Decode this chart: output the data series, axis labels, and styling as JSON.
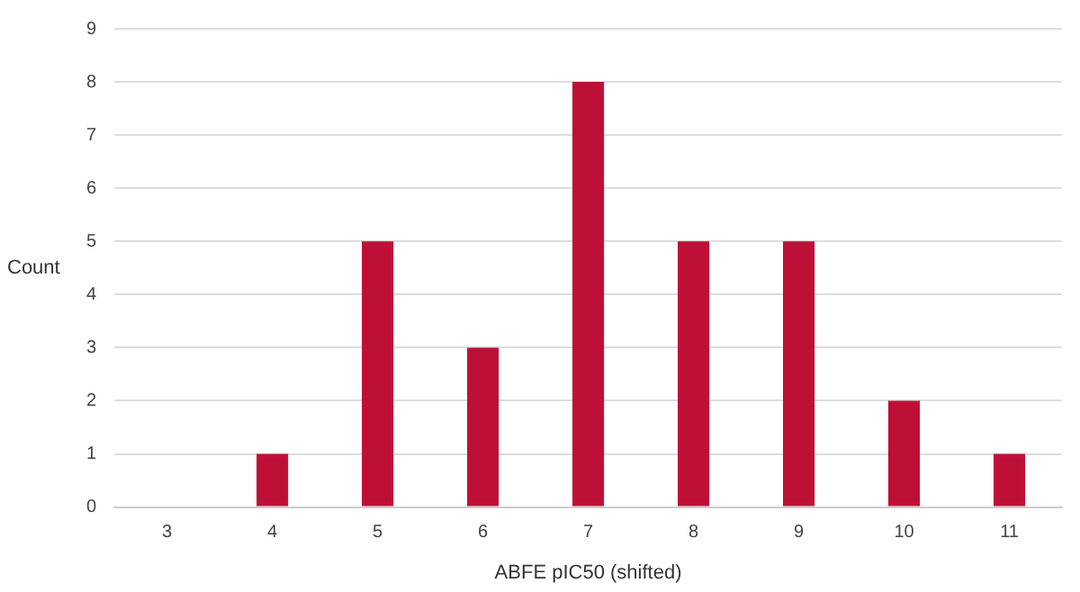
{
  "chart_data": {
    "type": "bar",
    "xlabel": "ABFE pIC50 (shifted)",
    "ylabel": "Count",
    "categories": [
      "3",
      "4",
      "5",
      "6",
      "7",
      "8",
      "9",
      "10",
      "11"
    ],
    "values": [
      0,
      1,
      5,
      3,
      8,
      5,
      5,
      2,
      1
    ],
    "color": "#be1037",
    "ylim": [
      0,
      9
    ],
    "yticks": [
      0,
      1,
      2,
      3,
      4,
      5,
      6,
      7,
      8,
      9
    ],
    "grid": "y",
    "legend": false
  }
}
